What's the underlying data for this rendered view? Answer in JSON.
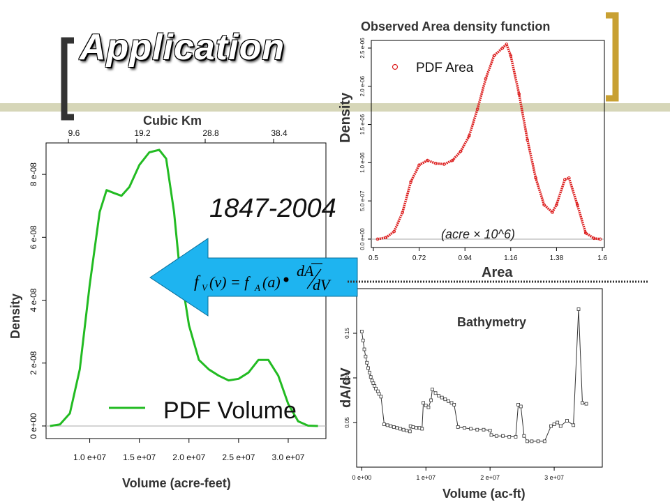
{
  "slide": {
    "title": "Application",
    "accent_color": "#C8A032",
    "band_color": "#D6D6B8"
  },
  "labels": {
    "year_range": "1847-2004",
    "arrow_formula": "f_V(v) = f_A(a) • dA/dV",
    "divider": "dotted-line"
  },
  "chart_data": [
    {
      "type": "line",
      "name": "volume-density",
      "title": "",
      "xlabel": "Volume (acre-feet)",
      "ylabel": "Density",
      "top_axis_label": "Cubic Km",
      "top_ticks": [
        "9.6",
        "19.2",
        "28.8",
        "38.4"
      ],
      "x_ticks": [
        "1.0 e+07",
        "1.5 e+07",
        "2.0 e+07",
        "2.5 e+07",
        "3.0 e+07"
      ],
      "y_ticks": [
        "0 e+00",
        "2 e-08",
        "4 e-08",
        "6 e-08",
        "8 e-08"
      ],
      "xlim": [
        5600000,
        33800000
      ],
      "ylim": [
        -4e-09,
        9e-08
      ],
      "legend": "PDF Volume",
      "legend_position": "bottom-right",
      "color": "#22BB22",
      "series": [
        {
          "name": "PDF Volume",
          "x": [
            6000000,
            7000000,
            8000000,
            9000000,
            10000000,
            11000000,
            11700000,
            12500000,
            13200000,
            14000000,
            15000000,
            16000000,
            17000000,
            17700000,
            18500000,
            19000000,
            20000000,
            21000000,
            22000000,
            23000000,
            24000000,
            25000000,
            26000000,
            27000000,
            28000000,
            29000000,
            30000000,
            31000000,
            32000000,
            33000000
          ],
          "y": [
            0,
            5e-10,
            4e-09,
            1.8e-08,
            4.5e-08,
            6.8e-08,
            7.5e-08,
            7.4e-08,
            7.32e-08,
            7.6e-08,
            8.3e-08,
            8.7e-08,
            8.78e-08,
            8.5e-08,
            6.8e-08,
            5.2e-08,
            3.2e-08,
            2.1e-08,
            1.8e-08,
            1.6e-08,
            1.45e-08,
            1.5e-08,
            1.7e-08,
            2.1e-08,
            2.1e-08,
            1.6e-08,
            7e-09,
            1.5e-09,
            1e-10,
            0
          ]
        }
      ]
    },
    {
      "type": "scatter",
      "name": "area-density",
      "title": "Observed Area density function",
      "xlabel": "Area",
      "ylabel": "Density",
      "annotation": "(acre × 10^6)",
      "x_ticks": [
        "0.5",
        "0.72",
        "0.94",
        "1.16",
        "1.38",
        "1.6"
      ],
      "y_ticks": [
        "0.0 e+00",
        "5.0 e-07",
        "1.0 e-06",
        "1.5 e-06",
        "2.0 e-06",
        "2.5 e-06"
      ],
      "xlim": [
        0.49,
        1.61
      ],
      "ylim": [
        -1.1e-07,
        2.6e-06
      ],
      "legend": "PDF Area",
      "legend_position": "top-left",
      "color": "#DD2222",
      "series": [
        {
          "name": "PDF Area",
          "x": [
            0.52,
            0.56,
            0.6,
            0.64,
            0.68,
            0.72,
            0.76,
            0.8,
            0.84,
            0.88,
            0.92,
            0.96,
            1.0,
            1.04,
            1.08,
            1.12,
            1.14,
            1.16,
            1.2,
            1.24,
            1.28,
            1.32,
            1.36,
            1.38,
            1.42,
            1.44,
            1.48,
            1.52,
            1.56,
            1.59
          ],
          "y": [
            0,
            2e-08,
            1e-07,
            3.5e-07,
            7.5e-07,
            9.7e-07,
            1.03e-06,
            9.9e-07,
            9.8e-07,
            1.03e-06,
            1.15e-06,
            1.35e-06,
            1.7e-06,
            2.1e-06,
            2.4e-06,
            2.5e-06,
            2.55e-06,
            2.4e-06,
            1.9e-06,
            1.3e-06,
            8e-07,
            4.5e-07,
            3.5e-07,
            4.5e-07,
            7.8e-07,
            8e-07,
            4.5e-07,
            8e-08,
            1e-08,
            0
          ]
        }
      ]
    },
    {
      "type": "line",
      "name": "bathymetry",
      "title": "Bathymetry",
      "xlabel": "Volume (ac-ft)",
      "ylabel": "dA/dV",
      "x_ticks": [
        "0 e+00",
        "1 e+07",
        "2 e+07",
        "3 e+07"
      ],
      "y_ticks": [
        "0.05",
        "0.10",
        "0.15"
      ],
      "xlim": [
        -800000,
        37500000
      ],
      "ylim": [
        0,
        0.2
      ],
      "color": "#333333",
      "series": [
        {
          "name": "dA/dV",
          "x": [
            0,
            200000,
            400000,
            600000,
            800000,
            1000000,
            1200000,
            1400000,
            1600000,
            1800000,
            2000000,
            2200000,
            2500000,
            2700000,
            3000000,
            3500000,
            4000000,
            4500000,
            5000000,
            5500000,
            6000000,
            6500000,
            7000000,
            7500000,
            7600000,
            8000000,
            8500000,
            9000000,
            9400000,
            9600000,
            10000000,
            10400000,
            10800000,
            11000000,
            11500000,
            12000000,
            12500000,
            13000000,
            13500000,
            14000000,
            14400000,
            15000000,
            16000000,
            17000000,
            18000000,
            19000000,
            20000000,
            20200000,
            21000000,
            22000000,
            23000000,
            24000000,
            24400000,
            24800000,
            25300000,
            25800000,
            26500000,
            27500000,
            28500000,
            29500000,
            30000000,
            30500000,
            31000000,
            32000000,
            33000000,
            33800000,
            34400000,
            35000000
          ],
          "y": [
            0.152,
            0.142,
            0.132,
            0.124,
            0.117,
            0.111,
            0.106,
            0.101,
            0.097,
            0.094,
            0.091,
            0.088,
            0.085,
            0.082,
            0.079,
            0.048,
            0.047,
            0.046,
            0.045,
            0.044,
            0.043,
            0.042,
            0.041,
            0.04,
            0.046,
            0.045,
            0.044,
            0.044,
            0.043,
            0.072,
            0.069,
            0.067,
            0.075,
            0.087,
            0.083,
            0.08,
            0.078,
            0.076,
            0.074,
            0.072,
            0.07,
            0.045,
            0.044,
            0.043,
            0.042,
            0.042,
            0.041,
            0.036,
            0.035,
            0.035,
            0.034,
            0.034,
            0.07,
            0.068,
            0.035,
            0.029,
            0.029,
            0.029,
            0.029,
            0.046,
            0.048,
            0.05,
            0.046,
            0.052,
            0.047,
            0.177,
            0.072,
            0.071
          ]
        }
      ]
    }
  ]
}
